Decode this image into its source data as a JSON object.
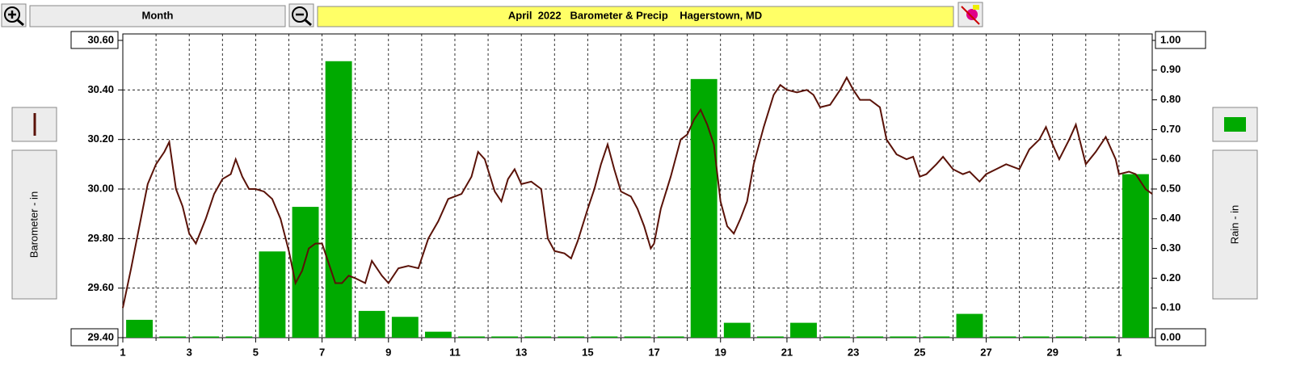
{
  "ui": {
    "period": "Month"
  },
  "chart_data": {
    "type": "combo",
    "title": "April  2022   Barometer & Precip    Hagerstown, MD",
    "ylabel": "Barometer - in",
    "y2label": "Rain - in",
    "xlim": [
      1,
      32
    ],
    "xticks": [
      1,
      3,
      5,
      7,
      9,
      11,
      13,
      15,
      17,
      19,
      21,
      23,
      25,
      27,
      29,
      {
        "value": 31,
        "label": "1"
      }
    ],
    "x_minor_ticks": [
      2,
      4,
      6,
      8,
      10,
      12,
      14,
      16,
      18,
      20,
      22,
      24,
      26,
      28,
      30
    ],
    "ylim": [
      29.4,
      30.6
    ],
    "yticks": [
      {
        "value": 29.4,
        "label": "29.40"
      },
      {
        "value": 29.6,
        "label": "29.60"
      },
      {
        "value": 29.8,
        "label": "29.80"
      },
      {
        "value": 30,
        "label": "30.00"
      },
      {
        "value": 30.2,
        "label": "30.20"
      },
      {
        "value": 30.4,
        "label": "30.40"
      },
      {
        "value": 30.6,
        "label": "30.60"
      }
    ],
    "y2lim": [
      0,
      1
    ],
    "y2ticks": [
      {
        "value": 0,
        "label": "0.00"
      },
      {
        "value": 0.1,
        "label": "0.10"
      },
      {
        "value": 0.2,
        "label": "0.20"
      },
      {
        "value": 0.3,
        "label": "0.30"
      },
      {
        "value": 0.4,
        "label": "0.40"
      },
      {
        "value": 0.5,
        "label": "0.50"
      },
      {
        "value": 0.6,
        "label": "0.60"
      },
      {
        "value": 0.7,
        "label": "0.70"
      },
      {
        "value": 0.8,
        "label": "0.80"
      },
      {
        "value": 0.9,
        "label": "0.90"
      },
      {
        "value": 1,
        "label": "1.00"
      }
    ],
    "grid": true,
    "series": [
      {
        "name": "Barometer - in",
        "type": "line",
        "color": "#5a1208",
        "x": [
          1,
          1.25,
          1.5,
          1.75,
          2,
          2.25,
          2.4,
          2.6,
          2.8,
          3,
          3.2,
          3.5,
          3.75,
          4,
          4.25,
          4.4,
          4.6,
          4.8,
          5,
          5.25,
          5.5,
          5.75,
          6,
          6.2,
          6.4,
          6.6,
          6.8,
          7,
          7.2,
          7.4,
          7.6,
          7.8,
          8,
          8.3,
          8.5,
          8.8,
          9,
          9.3,
          9.6,
          9.9,
          10.2,
          10.5,
          10.8,
          11.2,
          11.5,
          11.7,
          11.9,
          12.2,
          12.4,
          12.6,
          12.8,
          13,
          13.3,
          13.6,
          13.8,
          14,
          14.3,
          14.5,
          14.7,
          15,
          15.2,
          15.4,
          15.6,
          15.8,
          16,
          16.3,
          16.5,
          16.7,
          16.9,
          17,
          17.2,
          17.5,
          17.8,
          18,
          18.2,
          18.4,
          18.6,
          18.8,
          19,
          19.2,
          19.4,
          19.6,
          19.8,
          20,
          20.3,
          20.6,
          20.8,
          21,
          21.3,
          21.6,
          21.8,
          22,
          22.3,
          22.6,
          22.8,
          23,
          23.2,
          23.5,
          23.8,
          24,
          24.3,
          24.6,
          24.8,
          25,
          25.2,
          25.5,
          25.7,
          26,
          26.3,
          26.5,
          26.8,
          27,
          27.3,
          27.6,
          28,
          28.3,
          28.6,
          28.8,
          29,
          29.2,
          29.5,
          29.7,
          30,
          30.3,
          30.6,
          30.9,
          31,
          31.3,
          31.5,
          31.8,
          32
        ],
        "values": [
          29.52,
          29.68,
          29.85,
          30.02,
          30.1,
          30.15,
          30.19,
          30.0,
          29.93,
          29.82,
          29.78,
          29.88,
          29.98,
          30.04,
          30.06,
          30.12,
          30.05,
          30.0,
          30.0,
          29.99,
          29.96,
          29.88,
          29.75,
          29.62,
          29.67,
          29.76,
          29.78,
          29.78,
          29.7,
          29.62,
          29.62,
          29.65,
          29.64,
          29.62,
          29.71,
          29.65,
          29.62,
          29.68,
          29.69,
          29.68,
          29.8,
          29.87,
          29.96,
          29.98,
          30.05,
          30.15,
          30.12,
          29.99,
          29.95,
          30.04,
          30.08,
          30.02,
          30.03,
          30.0,
          29.8,
          29.75,
          29.74,
          29.72,
          29.79,
          29.92,
          30.0,
          30.1,
          30.18,
          30.08,
          29.99,
          29.97,
          29.92,
          29.85,
          29.76,
          29.78,
          29.92,
          30.05,
          30.2,
          30.22,
          30.28,
          30.32,
          30.26,
          30.18,
          29.95,
          29.85,
          29.82,
          29.88,
          29.95,
          30.1,
          30.25,
          30.38,
          30.42,
          30.4,
          30.39,
          30.4,
          30.38,
          30.33,
          30.34,
          30.4,
          30.45,
          30.4,
          30.36,
          30.36,
          30.33,
          30.2,
          30.14,
          30.12,
          30.13,
          30.05,
          30.06,
          30.1,
          30.13,
          30.08,
          30.06,
          30.07,
          30.03,
          30.06,
          30.08,
          30.1,
          30.08,
          30.16,
          30.2,
          30.25,
          30.18,
          30.12,
          30.2,
          30.26,
          30.1,
          30.15,
          30.21,
          30.12,
          30.06,
          30.07,
          30.06,
          30.0,
          29.98
        ]
      },
      {
        "name": "Rain - in",
        "type": "bar",
        "color": "#00aa00",
        "axis": "y2",
        "x": [
          1,
          2,
          3,
          4,
          5,
          6,
          7,
          8,
          9,
          10,
          11,
          12,
          13,
          14,
          15,
          16,
          17,
          18,
          19,
          20,
          21,
          22,
          23,
          24,
          25,
          26,
          27,
          28,
          29,
          30,
          31
        ],
        "values": [
          0.06,
          0,
          0,
          0,
          0.29,
          0.44,
          0.93,
          0.09,
          0.07,
          0.02,
          0,
          0,
          0,
          0,
          0,
          0,
          0,
          0.87,
          0.05,
          0,
          0.05,
          0,
          0,
          0,
          0,
          0.08,
          0,
          0,
          0,
          0,
          0.55
        ]
      }
    ]
  }
}
